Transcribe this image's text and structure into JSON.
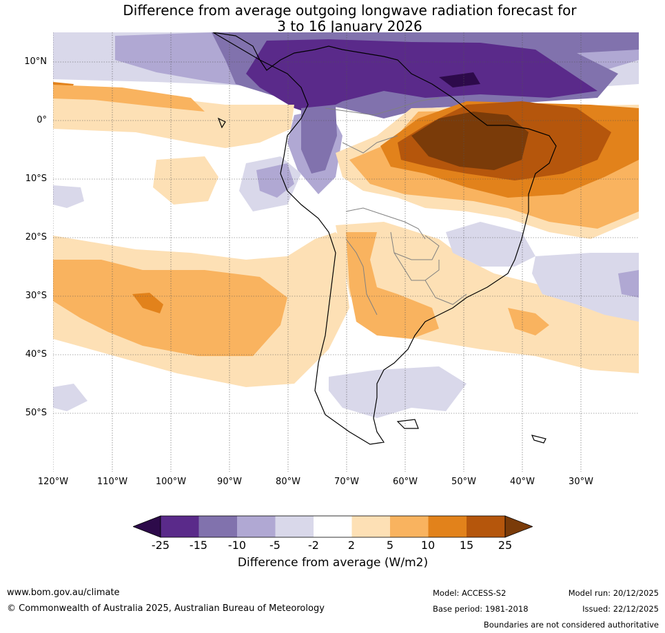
{
  "title": {
    "line1": "Difference from average outgoing longwave radiation forecast for",
    "line2": "3 to 16 January 2026"
  },
  "map": {
    "lat_labels": [
      "10°N",
      "0°",
      "10°S",
      "20°S",
      "30°S",
      "40°S",
      "50°S"
    ],
    "lon_labels": [
      "120°W",
      "110°W",
      "100°W",
      "90°W",
      "80°W",
      "70°W",
      "60°W",
      "50°W",
      "40°W",
      "30°W"
    ]
  },
  "colorbar": {
    "ticks": [
      "-25",
      "-15",
      "-10",
      "-5",
      "-2",
      "2",
      "5",
      "10",
      "15",
      "25"
    ],
    "label": "Difference from average (W/m2)",
    "colors": {
      "under": "#2d0a4a",
      "c1": "#5a2a8a",
      "c2": "#8172ad",
      "c3": "#b0a8d3",
      "c4": "#d9d8ea",
      "c5": "#ffffff",
      "c6": "#fde0b5",
      "c7": "#f9b35f",
      "c8": "#e2821b",
      "c9": "#b5560c",
      "over": "#7a3b09"
    }
  },
  "footer": {
    "url": "www.bom.gov.au/climate",
    "copyright": "© Commonwealth of Australia 2025, Australian Bureau of Meteorology",
    "model": "Model: ACCESS-S2",
    "base_period": "Base period: 1981-2018",
    "model_run": "Model run: 20/12/2025",
    "issued": "Issued: 22/12/2025",
    "disclaimer": "Boundaries are not considered authoritative"
  }
}
